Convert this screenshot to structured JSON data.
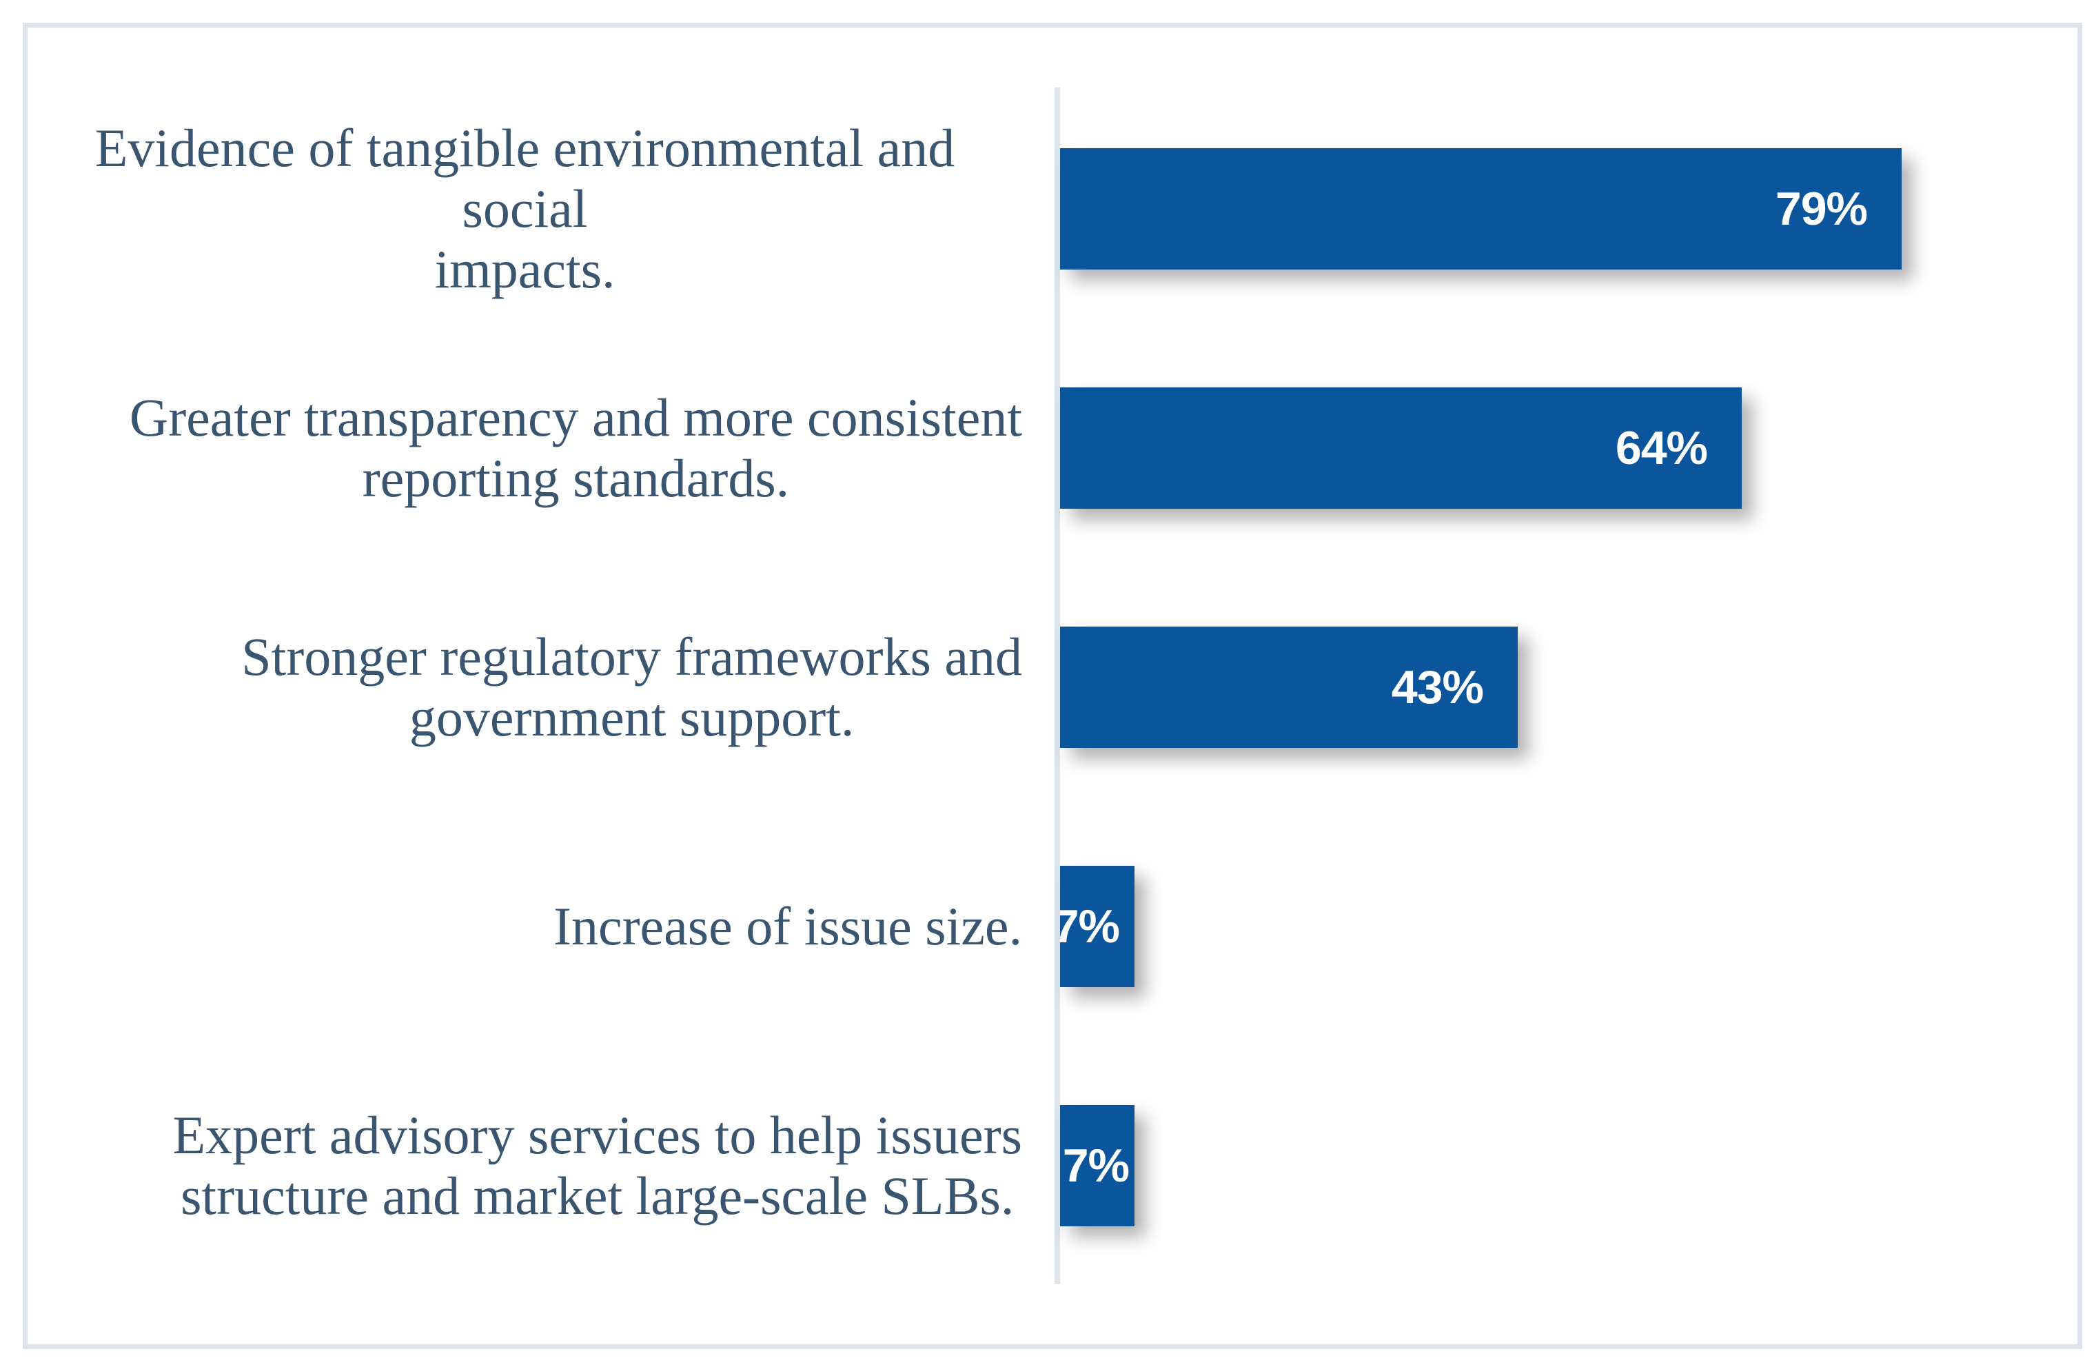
{
  "chart_data": {
    "type": "bar",
    "orientation": "horizontal",
    "title": "",
    "xlabel": "",
    "ylabel": "",
    "categories": [
      "Evidence of tangible environmental and social\nimpacts.",
      "Greater transparency and more consistent\nreporting standards.",
      "Stronger regulatory frameworks and\ngovernment support.",
      "Increase of issue size.",
      "Expert advisory services to help issuers\nstructure and market large-scale SLBs."
    ],
    "values": [
      79,
      64,
      43,
      7,
      7
    ],
    "value_labels": [
      "79%",
      "64%",
      "43%",
      "7%",
      "7%"
    ],
    "xlim": [
      0,
      95.5
    ],
    "grid": false,
    "legend": false,
    "data_labels_position": "inside-end",
    "colors": {
      "bar": "#0b559c",
      "data_label_text": "#ffffff",
      "category_label_text": "#3a5570",
      "category_axis_line": "#dde4eb",
      "frame_border": "#dce3ec",
      "background": "#ffffff"
    }
  }
}
